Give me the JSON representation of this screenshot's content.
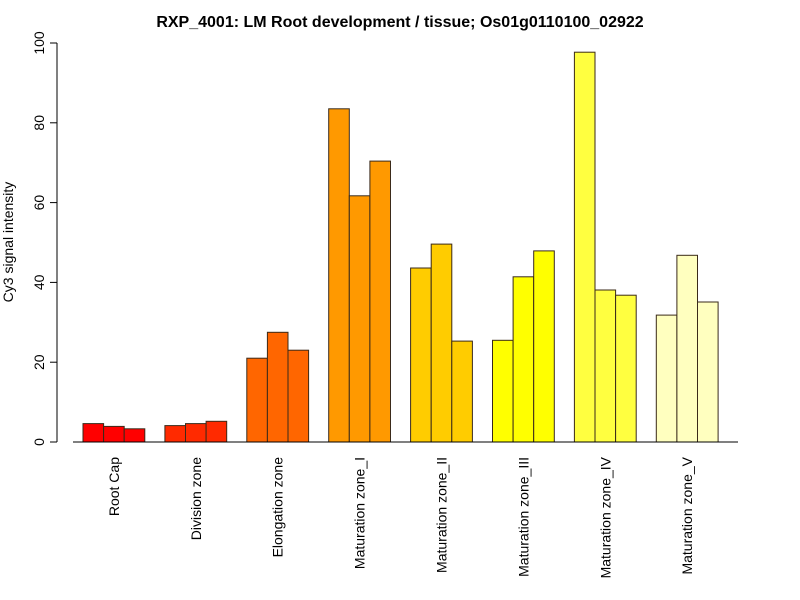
{
  "chart_data": {
    "type": "bar",
    "title": "RXP_4001: LM Root development / tissue; Os01g0110100_02922",
    "xlabel": "",
    "ylabel": "Cy3 signal intensity",
    "ylim": [
      0,
      100
    ],
    "yticks": [
      0,
      20,
      40,
      60,
      80,
      100
    ],
    "grid": false,
    "categories": [
      "Root Cap",
      "Division zone",
      "Elongation zone",
      "Maturation zone_I",
      "Maturation zone_II",
      "Maturation zone_III",
      "Maturation zone_IV",
      "Maturation zone_V"
    ],
    "colors": [
      "#ff0000",
      "#ff2a00",
      "#ff6600",
      "#ff9900",
      "#ffcc00",
      "#ffff00",
      "#ffff40",
      "#ffffbf"
    ],
    "replicates_per_category": 3,
    "values": [
      [
        4.6,
        3.9,
        3.3
      ],
      [
        4.1,
        4.6,
        5.2
      ],
      [
        21.0,
        27.5,
        23.0
      ],
      [
        83.5,
        61.7,
        70.4
      ],
      [
        43.6,
        49.6,
        25.3
      ],
      [
        25.5,
        41.4,
        47.9
      ],
      [
        97.7,
        38.1,
        36.8
      ],
      [
        31.8,
        46.8,
        35.1
      ]
    ]
  }
}
